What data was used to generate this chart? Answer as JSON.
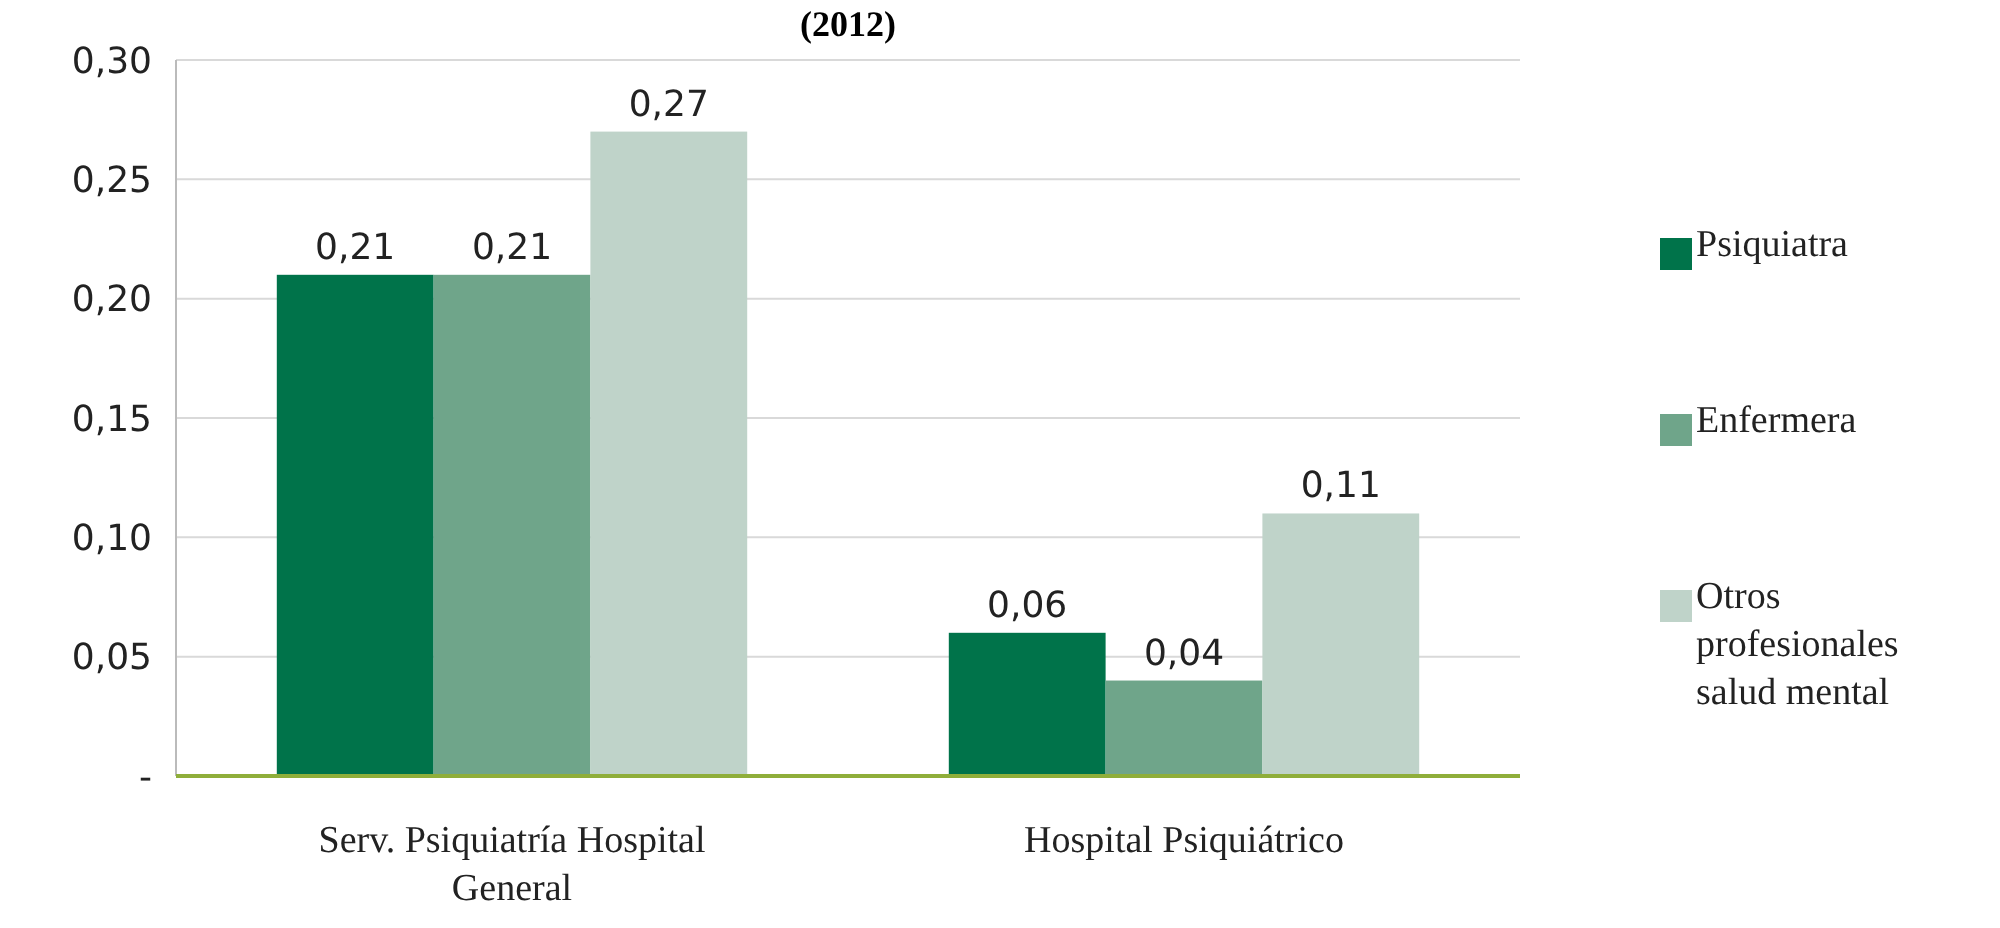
{
  "chart_data": {
    "type": "bar",
    "title": "(2012)",
    "categories": [
      "Serv. Psiquiatría Hospital General",
      "Hospital Psiquiátrico"
    ],
    "series": [
      {
        "name": "Psiquiatra",
        "color": "#00734a",
        "values": [
          0.21,
          0.06
        ],
        "value_labels": [
          "0,21",
          "0,06"
        ]
      },
      {
        "name": "Enfermera",
        "color": "#6fa58a",
        "values": [
          0.21,
          0.04
        ],
        "value_labels": [
          "0,21",
          "0,04"
        ]
      },
      {
        "name": "Otros profesionales salud mental",
        "color": "#bfd3c9",
        "values": [
          0.27,
          0.11
        ],
        "value_labels": [
          "0,27",
          "0,11"
        ]
      }
    ],
    "ylim": [
      0,
      0.3
    ],
    "yticks": [
      {
        "value": 0,
        "label": "-"
      },
      {
        "value": 0.05,
        "label": "0,05"
      },
      {
        "value": 0.1,
        "label": "0,10"
      },
      {
        "value": 0.15,
        "label": "0,15"
      },
      {
        "value": 0.2,
        "label": "0,20"
      },
      {
        "value": 0.25,
        "label": "0,25"
      },
      {
        "value": 0.3,
        "label": "0,30"
      }
    ],
    "grid": "y",
    "legend": "right"
  }
}
